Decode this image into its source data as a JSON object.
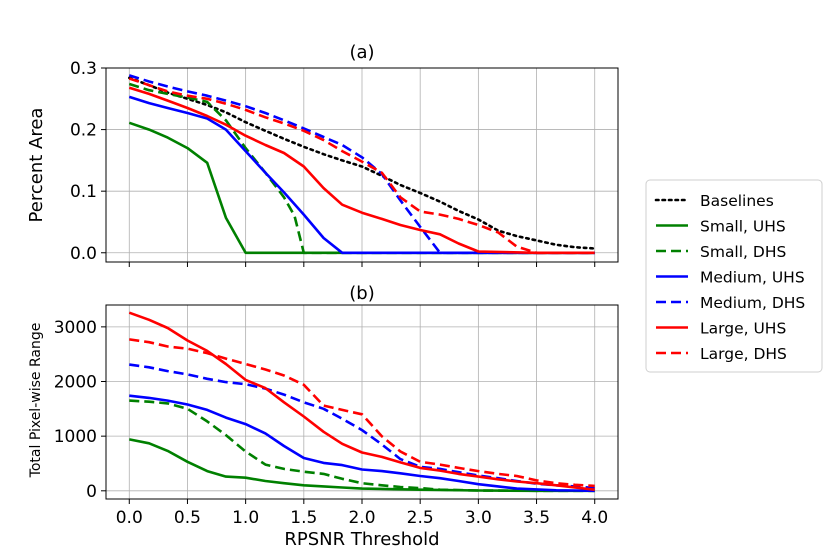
{
  "chart_data": [
    {
      "type": "line",
      "title": "(a)",
      "xlabel": "",
      "ylabel": "Percent Area",
      "xlim": [
        -0.2,
        4.2
      ],
      "ylim": [
        -0.015,
        0.3
      ],
      "xticks": [
        0.0,
        0.5,
        1.0,
        1.5,
        2.0,
        2.5,
        3.0,
        3.5,
        4.0
      ],
      "yticks": [
        0.0,
        0.1,
        0.2,
        0.3
      ],
      "ytick_labels": [
        "0.0",
        "0.1",
        "0.2",
        "0.3"
      ],
      "show_xtick_labels": false,
      "grid": true,
      "series": [
        {
          "name": "Baselines",
          "color": "#000000",
          "dash": "dotted",
          "x": [
            0,
            0.17,
            0.33,
            0.5,
            0.67,
            0.83,
            1.0,
            1.17,
            1.33,
            1.5,
            1.67,
            1.83,
            2.0,
            2.17,
            2.33,
            2.5,
            2.67,
            2.83,
            3.0,
            3.17,
            3.33,
            3.5,
            3.67,
            3.83,
            4.0
          ],
          "y": [
            0.284,
            0.272,
            0.26,
            0.25,
            0.24,
            0.228,
            0.212,
            0.198,
            0.185,
            0.172,
            0.16,
            0.15,
            0.14,
            0.125,
            0.11,
            0.097,
            0.083,
            0.068,
            0.054,
            0.036,
            0.027,
            0.02,
            0.013,
            0.009,
            0.007
          ]
        },
        {
          "name": "Small, UHS",
          "color": "#008000",
          "dash": "solid",
          "x": [
            0,
            0.17,
            0.33,
            0.5,
            0.67,
            0.83,
            1.0,
            1.17,
            1.5,
            2.0,
            2.5,
            3.0,
            3.5,
            4.0
          ],
          "y": [
            0.211,
            0.2,
            0.187,
            0.17,
            0.146,
            0.057,
            0.0,
            0.0,
            0.0,
            0.0,
            0.0,
            0.0,
            0.0,
            0.0
          ]
        },
        {
          "name": "Small, DHS",
          "color": "#008000",
          "dash": "dashed",
          "x": [
            0,
            0.17,
            0.33,
            0.5,
            0.67,
            0.83,
            1.0,
            1.17,
            1.33,
            1.42,
            1.5,
            2.0,
            2.5,
            3.0,
            3.5,
            4.0
          ],
          "y": [
            0.274,
            0.264,
            0.258,
            0.252,
            0.245,
            0.215,
            0.17,
            0.13,
            0.09,
            0.06,
            0.0,
            0.0,
            0.0,
            0.0,
            0.0,
            0.0
          ]
        },
        {
          "name": "Medium, UHS",
          "color": "#0000ff",
          "dash": "solid",
          "x": [
            0,
            0.17,
            0.33,
            0.5,
            0.67,
            0.83,
            1.0,
            1.17,
            1.33,
            1.5,
            1.67,
            1.83,
            2.0,
            2.5,
            3.0,
            3.5,
            4.0
          ],
          "y": [
            0.253,
            0.243,
            0.235,
            0.227,
            0.218,
            0.2,
            0.165,
            0.13,
            0.098,
            0.062,
            0.024,
            0.0,
            0.0,
            0.0,
            0.0,
            0.0,
            0.0
          ]
        },
        {
          "name": "Medium, DHS",
          "color": "#0000ff",
          "dash": "dashed",
          "x": [
            0,
            0.17,
            0.33,
            0.5,
            0.67,
            0.83,
            1.0,
            1.17,
            1.33,
            1.5,
            1.67,
            1.83,
            2.0,
            2.17,
            2.33,
            2.5,
            2.67,
            3.0,
            3.5,
            4.0
          ],
          "y": [
            0.288,
            0.278,
            0.27,
            0.262,
            0.255,
            0.247,
            0.238,
            0.227,
            0.215,
            0.202,
            0.188,
            0.175,
            0.155,
            0.128,
            0.085,
            0.042,
            0.0,
            0.0,
            0.0,
            0.0
          ]
        },
        {
          "name": "Large, UHS",
          "color": "#ff0000",
          "dash": "solid",
          "x": [
            0,
            0.17,
            0.33,
            0.5,
            0.67,
            0.83,
            1.0,
            1.17,
            1.33,
            1.5,
            1.67,
            1.83,
            2.0,
            2.17,
            2.33,
            2.5,
            2.67,
            2.83,
            3.0,
            3.5,
            4.0
          ],
          "y": [
            0.268,
            0.258,
            0.247,
            0.235,
            0.222,
            0.208,
            0.19,
            0.175,
            0.162,
            0.14,
            0.105,
            0.078,
            0.065,
            0.055,
            0.045,
            0.037,
            0.03,
            0.015,
            0.002,
            0.0,
            0.0
          ]
        },
        {
          "name": "Large, DHS",
          "color": "#ff0000",
          "dash": "dashed",
          "x": [
            0,
            0.17,
            0.33,
            0.5,
            0.67,
            0.83,
            1.0,
            1.17,
            1.33,
            1.5,
            1.67,
            1.83,
            2.0,
            2.17,
            2.33,
            2.5,
            2.67,
            2.83,
            3.0,
            3.17,
            3.33,
            3.5,
            4.0
          ],
          "y": [
            0.283,
            0.272,
            0.262,
            0.255,
            0.25,
            0.242,
            0.232,
            0.22,
            0.21,
            0.198,
            0.183,
            0.165,
            0.148,
            0.13,
            0.09,
            0.067,
            0.062,
            0.055,
            0.045,
            0.033,
            0.01,
            0.0,
            0.0
          ]
        }
      ]
    },
    {
      "type": "line",
      "title": "(b)",
      "xlabel": "RPSNR Threshold",
      "ylabel": "Total Pixel-wise Range",
      "xlim": [
        -0.2,
        4.2
      ],
      "ylim": [
        -150,
        3400
      ],
      "xticks": [
        0.0,
        0.5,
        1.0,
        1.5,
        2.0,
        2.5,
        3.0,
        3.5,
        4.0
      ],
      "xtick_labels": [
        "0.0",
        "0.5",
        "1.0",
        "1.5",
        "2.0",
        "2.5",
        "3.0",
        "3.5",
        "4.0"
      ],
      "yticks": [
        0,
        1000,
        2000,
        3000
      ],
      "ytick_labels": [
        "0",
        "1000",
        "2000",
        "3000"
      ],
      "show_xtick_labels": true,
      "grid": true,
      "series": [
        {
          "name": "Small, UHS",
          "color": "#008000",
          "dash": "solid",
          "x": [
            0,
            0.17,
            0.33,
            0.5,
            0.67,
            0.83,
            1.0,
            1.17,
            1.33,
            1.5,
            1.67,
            1.83,
            2.0,
            2.5,
            3.0,
            3.5,
            4.0
          ],
          "y": [
            940,
            870,
            730,
            530,
            360,
            260,
            240,
            180,
            140,
            100,
            80,
            60,
            40,
            20,
            5,
            0,
            0
          ]
        },
        {
          "name": "Small, DHS",
          "color": "#008000",
          "dash": "dashed",
          "x": [
            0,
            0.17,
            0.33,
            0.5,
            0.67,
            0.83,
            1.0,
            1.17,
            1.33,
            1.5,
            1.67,
            1.83,
            2.0,
            2.17,
            2.33,
            2.5,
            2.67,
            3.0,
            3.5,
            4.0
          ],
          "y": [
            1650,
            1630,
            1600,
            1500,
            1270,
            1020,
            720,
            480,
            400,
            350,
            310,
            220,
            140,
            100,
            70,
            50,
            20,
            5,
            0,
            0
          ]
        },
        {
          "name": "Medium, UHS",
          "color": "#0000ff",
          "dash": "solid",
          "x": [
            0,
            0.17,
            0.33,
            0.5,
            0.67,
            0.83,
            1.0,
            1.17,
            1.33,
            1.5,
            1.67,
            1.83,
            2.0,
            2.17,
            2.33,
            2.5,
            2.67,
            2.83,
            3.0,
            3.17,
            3.33,
            3.5,
            3.67,
            3.83,
            4.0
          ],
          "y": [
            1740,
            1700,
            1650,
            1580,
            1480,
            1340,
            1220,
            1050,
            820,
            600,
            510,
            470,
            390,
            360,
            320,
            270,
            230,
            180,
            120,
            80,
            40,
            25,
            10,
            5,
            0
          ]
        },
        {
          "name": "Medium, DHS",
          "color": "#0000ff",
          "dash": "dashed",
          "x": [
            0,
            0.17,
            0.33,
            0.5,
            0.67,
            0.83,
            1.0,
            1.17,
            1.33,
            1.5,
            1.67,
            1.83,
            2.0,
            2.17,
            2.33,
            2.5,
            2.67,
            2.83,
            3.0,
            3.17,
            3.33,
            3.5,
            3.67,
            3.83,
            4.0
          ],
          "y": [
            2310,
            2260,
            2190,
            2130,
            2050,
            1990,
            1950,
            1870,
            1760,
            1620,
            1500,
            1320,
            1110,
            850,
            580,
            440,
            400,
            340,
            280,
            230,
            180,
            130,
            100,
            80,
            50
          ]
        },
        {
          "name": "Large, UHS",
          "color": "#ff0000",
          "dash": "solid",
          "x": [
            0,
            0.17,
            0.33,
            0.5,
            0.67,
            0.83,
            1.0,
            1.17,
            1.33,
            1.5,
            1.67,
            1.83,
            2.0,
            2.17,
            2.33,
            2.5,
            2.67,
            2.83,
            3.0,
            3.17,
            3.33,
            3.5,
            3.67,
            3.83,
            4.0
          ],
          "y": [
            3260,
            3130,
            2980,
            2750,
            2560,
            2320,
            2030,
            1880,
            1620,
            1360,
            1080,
            860,
            700,
            620,
            520,
            420,
            370,
            310,
            260,
            210,
            170,
            140,
            100,
            60,
            20
          ]
        },
        {
          "name": "Large, DHS",
          "color": "#ff0000",
          "dash": "dashed",
          "x": [
            0,
            0.17,
            0.33,
            0.5,
            0.67,
            0.83,
            1.0,
            1.17,
            1.33,
            1.5,
            1.67,
            1.83,
            2.0,
            2.17,
            2.33,
            2.5,
            2.67,
            2.83,
            3.0,
            3.17,
            3.33,
            3.5,
            3.67,
            3.83,
            4.0
          ],
          "y": [
            2770,
            2720,
            2640,
            2600,
            2520,
            2420,
            2320,
            2220,
            2110,
            1940,
            1560,
            1480,
            1400,
            1000,
            720,
            530,
            480,
            420,
            360,
            310,
            270,
            190,
            140,
            110,
            90
          ]
        }
      ]
    }
  ],
  "legend": {
    "placement": "right",
    "entries": [
      {
        "label": "Baselines",
        "color": "#000000",
        "dash": "dotted"
      },
      {
        "label": "Small, UHS",
        "color": "#008000",
        "dash": "solid"
      },
      {
        "label": "Small, DHS",
        "color": "#008000",
        "dash": "dashed"
      },
      {
        "label": "Medium, UHS",
        "color": "#0000ff",
        "dash": "solid"
      },
      {
        "label": "Medium, DHS",
        "color": "#0000ff",
        "dash": "dashed"
      },
      {
        "label": "Large, UHS",
        "color": "#ff0000",
        "dash": "solid"
      },
      {
        "label": "Large, DHS",
        "color": "#ff0000",
        "dash": "dashed"
      }
    ]
  }
}
